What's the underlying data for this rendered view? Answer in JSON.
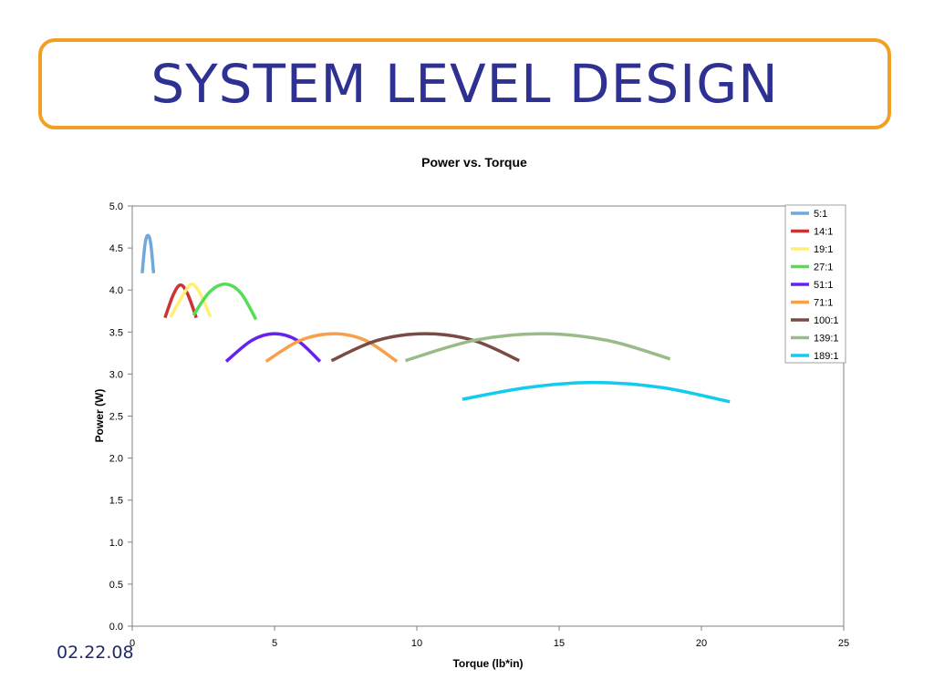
{
  "slide": {
    "title": "SYSTEM LEVEL DESIGN",
    "date": "02.22.08"
  },
  "chart_data": {
    "type": "line",
    "title": "Power vs. Torque",
    "xlabel": "Torque (lb*in)",
    "ylabel": "Power (W)",
    "xlim": [
      0,
      25
    ],
    "ylim": [
      0,
      5
    ],
    "x_ticks": [
      "0",
      "5",
      "10",
      "15",
      "20",
      "25"
    ],
    "y_ticks": [
      "0.0",
      "0.5",
      "1.0",
      "1.5",
      "2.0",
      "2.5",
      "3.0",
      "3.5",
      "4.0",
      "4.5",
      "5.0"
    ],
    "grid": false,
    "legend_position": "top-right",
    "series": [
      {
        "name": "5:1",
        "color": "#6fa8dc",
        "x": [
          0.35,
          0.45,
          0.55,
          0.65,
          0.75
        ],
        "y": [
          4.2,
          4.55,
          4.65,
          4.55,
          4.2
        ]
      },
      {
        "name": "14:1",
        "color": "#cc3333",
        "x": [
          1.15,
          1.45,
          1.7,
          1.95,
          2.25
        ],
        "y": [
          3.67,
          3.95,
          4.06,
          3.95,
          3.67
        ]
      },
      {
        "name": "19:1",
        "color": "#ffee77",
        "x": [
          1.35,
          1.8,
          2.1,
          2.4,
          2.75
        ],
        "y": [
          3.68,
          3.95,
          4.07,
          3.95,
          3.68
        ]
      },
      {
        "name": "27:1",
        "color": "#55dd55",
        "x": [
          2.15,
          2.7,
          3.25,
          3.8,
          4.35
        ],
        "y": [
          3.7,
          3.97,
          4.07,
          3.97,
          3.65
        ]
      },
      {
        "name": "51:1",
        "color": "#6622ee",
        "x": [
          3.3,
          4.2,
          5.0,
          5.8,
          6.6
        ],
        "y": [
          3.15,
          3.4,
          3.48,
          3.4,
          3.15
        ]
      },
      {
        "name": "71:1",
        "color": "#f7a04a",
        "x": [
          4.7,
          5.9,
          7.1,
          8.2,
          9.3
        ],
        "y": [
          3.15,
          3.4,
          3.48,
          3.4,
          3.15
        ]
      },
      {
        "name": "100:1",
        "color": "#7a4a44",
        "x": [
          7.0,
          8.6,
          10.3,
          12.0,
          13.6
        ],
        "y": [
          3.16,
          3.4,
          3.48,
          3.4,
          3.16
        ]
      },
      {
        "name": "139:1",
        "color": "#99bb88",
        "x": [
          9.6,
          12.0,
          14.4,
          16.7,
          18.9
        ],
        "y": [
          3.16,
          3.4,
          3.48,
          3.4,
          3.18
        ]
      },
      {
        "name": "189:1",
        "color": "#11ccee",
        "x": [
          11.6,
          13.9,
          16.2,
          18.6,
          21.0
        ],
        "y": [
          2.7,
          2.84,
          2.9,
          2.84,
          2.67
        ]
      }
    ]
  }
}
